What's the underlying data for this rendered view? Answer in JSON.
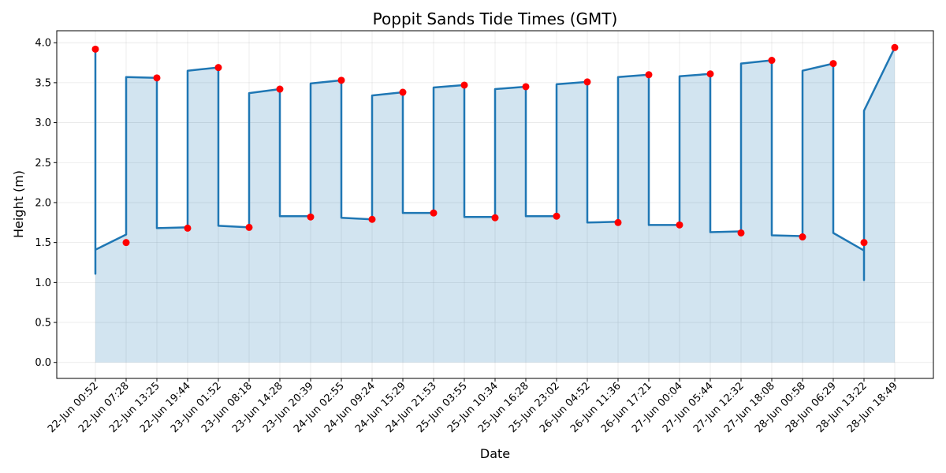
{
  "chart_data": {
    "type": "area",
    "title": "Poppit Sands Tide Times (GMT)",
    "xlabel": "Date",
    "ylabel": "Height (m)",
    "ylim": [
      -0.2,
      4.15
    ],
    "yticks": [
      "0.0",
      "0.5",
      "1.0",
      "1.5",
      "2.0",
      "2.5",
      "3.0",
      "3.5",
      "4.0"
    ],
    "grid": true,
    "line_color": "#1f77b4",
    "fill_color": "#1f77b4",
    "marker_color": "#ff0000",
    "categories": [
      "22-Jun 00:52",
      "22-Jun 07:28",
      "22-Jun 13:25",
      "22-Jun 19:44",
      "23-Jun 01:52",
      "23-Jun 08:18",
      "23-Jun 14:28",
      "23-Jun 20:39",
      "24-Jun 02:55",
      "24-Jun 09:24",
      "24-Jun 15:29",
      "24-Jun 21:53",
      "25-Jun 03:55",
      "25-Jun 10:34",
      "25-Jun 16:28",
      "25-Jun 23:02",
      "26-Jun 04:52",
      "26-Jun 11:36",
      "26-Jun 17:21",
      "27-Jun 00:04",
      "27-Jun 05:44",
      "27-Jun 12:32",
      "27-Jun 18:08",
      "28-Jun 00:58",
      "28-Jun 06:29",
      "28-Jun 13:22",
      "28-Jun 18:49"
    ],
    "tide_heights": [
      3.92,
      1.5,
      3.56,
      1.68,
      3.69,
      1.69,
      3.42,
      1.82,
      3.53,
      1.79,
      3.38,
      1.87,
      3.47,
      1.81,
      3.45,
      1.83,
      3.51,
      1.75,
      3.6,
      1.72,
      3.61,
      1.62,
      3.78,
      1.57,
      3.74,
      1.5,
      3.94
    ],
    "line": {
      "x": [
        "22-Jun 00:52",
        "22-Jun 00:52",
        "22-Jun 00:52",
        "22-Jun 07:28",
        "22-Jun 07:28",
        "22-Jun 13:25",
        "22-Jun 13:25",
        "22-Jun 19:44",
        "22-Jun 19:44",
        "23-Jun 01:52",
        "23-Jun 01:52",
        "23-Jun 08:18",
        "23-Jun 08:18",
        "23-Jun 14:28",
        "23-Jun 14:28",
        "23-Jun 20:39",
        "23-Jun 20:39",
        "24-Jun 02:55",
        "24-Jun 02:55",
        "24-Jun 09:24",
        "24-Jun 09:24",
        "24-Jun 15:29",
        "24-Jun 15:29",
        "24-Jun 21:53",
        "24-Jun 21:53",
        "25-Jun 03:55",
        "25-Jun 03:55",
        "25-Jun 10:34",
        "25-Jun 10:34",
        "25-Jun 16:28",
        "25-Jun 16:28",
        "25-Jun 23:02",
        "25-Jun 23:02",
        "26-Jun 04:52",
        "26-Jun 04:52",
        "26-Jun 11:36",
        "26-Jun 11:36",
        "26-Jun 17:21",
        "26-Jun 17:21",
        "27-Jun 00:04",
        "27-Jun 00:04",
        "27-Jun 05:44",
        "27-Jun 05:44",
        "27-Jun 12:32",
        "27-Jun 12:32",
        "27-Jun 18:08",
        "27-Jun 18:08",
        "28-Jun 00:58",
        "28-Jun 00:58",
        "28-Jun 06:29",
        "28-Jun 06:29",
        "28-Jun 13:22",
        "28-Jun 13:22",
        "28-Jun 13:22",
        "28-Jun 18:49"
      ],
      "y": [
        3.92,
        1.11,
        1.41,
        1.6,
        3.57,
        3.56,
        1.68,
        1.69,
        3.65,
        3.69,
        1.71,
        1.69,
        3.37,
        3.42,
        1.83,
        1.83,
        3.49,
        3.53,
        1.81,
        1.79,
        3.34,
        3.38,
        1.87,
        1.87,
        3.44,
        3.47,
        1.82,
        1.82,
        3.42,
        3.45,
        1.83,
        1.83,
        3.48,
        3.51,
        1.75,
        1.76,
        3.57,
        3.6,
        1.72,
        1.72,
        3.58,
        3.61,
        1.63,
        1.64,
        3.74,
        3.78,
        1.59,
        1.58,
        3.65,
        3.74,
        1.62,
        1.4,
        1.03,
        3.15,
        3.94
      ]
    }
  }
}
